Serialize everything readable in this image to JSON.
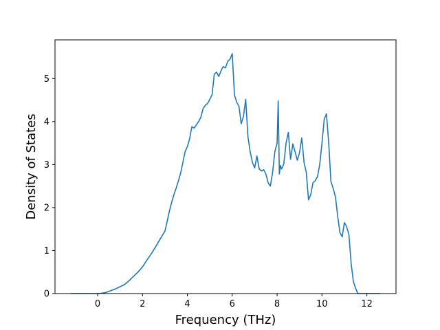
{
  "chart_data": {
    "type": "line",
    "title": "",
    "xlabel": "Frequency (THz)",
    "ylabel": "Density of States",
    "xlim": [
      -1.9,
      13.3
    ],
    "ylim": [
      0,
      5.9
    ],
    "xticks": [
      0,
      2,
      4,
      6,
      8,
      10,
      12
    ],
    "yticks": [
      0,
      1,
      2,
      3,
      4,
      5
    ],
    "grid": false,
    "legend": "none",
    "line_color": "#1f77b4",
    "series": [
      {
        "x": [
          -1.2,
          -0.8,
          -0.4,
          0.0,
          0.2,
          0.4,
          0.6,
          0.8,
          1.0,
          1.2,
          1.4,
          1.6,
          1.8,
          2.0,
          2.2,
          2.4,
          2.6,
          2.8,
          3.0,
          3.1,
          3.2,
          3.3,
          3.4,
          3.5,
          3.6,
          3.7,
          3.8,
          3.9,
          4.0,
          4.1,
          4.2,
          4.3,
          4.4,
          4.5,
          4.6,
          4.7,
          4.8,
          4.9,
          5.0,
          5.1,
          5.2,
          5.3,
          5.4,
          5.5,
          5.6,
          5.7,
          5.8,
          5.9,
          6.0,
          6.1,
          6.2,
          6.3,
          6.4,
          6.5,
          6.6,
          6.7,
          6.8,
          6.9,
          7.0,
          7.1,
          7.2,
          7.3,
          7.4,
          7.5,
          7.6,
          7.7,
          7.8,
          7.9,
          8.0,
          8.05,
          8.1,
          8.15,
          8.2,
          8.25,
          8.3,
          8.4,
          8.5,
          8.6,
          8.7,
          8.8,
          8.9,
          9.0,
          9.1,
          9.2,
          9.3,
          9.4,
          9.5,
          9.6,
          9.7,
          9.8,
          9.9,
          10.0,
          10.1,
          10.2,
          10.3,
          10.4,
          10.5,
          10.6,
          10.7,
          10.8,
          10.9,
          11.0,
          11.1,
          11.2,
          11.3,
          11.4,
          11.5,
          11.6,
          11.8,
          12.2,
          12.6
        ],
        "values": [
          0,
          0,
          0,
          0,
          0.01,
          0.03,
          0.07,
          0.11,
          0.16,
          0.21,
          0.3,
          0.4,
          0.5,
          0.62,
          0.78,
          0.93,
          1.1,
          1.28,
          1.45,
          1.68,
          1.92,
          2.12,
          2.3,
          2.45,
          2.62,
          2.8,
          3.05,
          3.3,
          3.42,
          3.6,
          3.88,
          3.85,
          3.92,
          4.0,
          4.1,
          4.3,
          4.38,
          4.42,
          4.52,
          4.62,
          5.1,
          5.15,
          5.05,
          5.18,
          5.28,
          5.25,
          5.4,
          5.45,
          5.58,
          4.62,
          4.45,
          4.35,
          3.95,
          4.12,
          4.52,
          3.65,
          3.3,
          3.05,
          2.92,
          3.2,
          2.9,
          2.85,
          2.88,
          2.78,
          2.58,
          2.5,
          2.82,
          3.3,
          3.5,
          4.48,
          2.78,
          2.98,
          2.9,
          2.95,
          3.02,
          3.5,
          3.75,
          3.12,
          3.48,
          3.3,
          3.1,
          3.28,
          3.62,
          3.05,
          2.82,
          2.18,
          2.3,
          2.58,
          2.62,
          2.72,
          3.0,
          3.5,
          4.05,
          4.18,
          3.5,
          2.6,
          2.45,
          2.25,
          1.8,
          1.42,
          1.32,
          1.65,
          1.55,
          1.38,
          0.7,
          0.28,
          0.12,
          0,
          0,
          0,
          0
        ]
      }
    ]
  }
}
